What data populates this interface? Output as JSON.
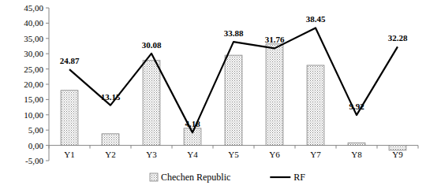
{
  "chart_data": {
    "type": "bar",
    "categories": [
      "Y1",
      "Y2",
      "Y3",
      "Y4",
      "Y5",
      "Y6",
      "Y7",
      "Y8",
      "Y9"
    ],
    "series": [
      {
        "name": "Chechen Republic",
        "type": "bar",
        "color": "#7f7f7f",
        "values": [
          18.0,
          3.8,
          27.8,
          5.6,
          29.5,
          33.2,
          26.2,
          0.8,
          -1.6
        ]
      },
      {
        "name": "RF",
        "type": "line",
        "color": "#000000",
        "marker": "none",
        "data_labels": true,
        "values": [
          24.87,
          13.15,
          30.08,
          4.18,
          33.88,
          31.76,
          38.45,
          9.92,
          32.28
        ]
      }
    ],
    "ylim": [
      -5,
      45
    ],
    "yticks": [
      {
        "value": -5,
        "label": "-5,00"
      },
      {
        "value": 0,
        "label": "0,00"
      },
      {
        "value": 5,
        "label": "5,00"
      },
      {
        "value": 10,
        "label": "10,00"
      },
      {
        "value": 15,
        "label": "15,00"
      },
      {
        "value": 20,
        "label": "20,00"
      },
      {
        "value": 25,
        "label": "25,00"
      },
      {
        "value": 30,
        "label": "30,00"
      },
      {
        "value": 35,
        "label": "35,00"
      },
      {
        "value": 40,
        "label": "40,00"
      },
      {
        "value": 45,
        "label": "45,00"
      }
    ],
    "grid": false,
    "legend": "bottom"
  }
}
